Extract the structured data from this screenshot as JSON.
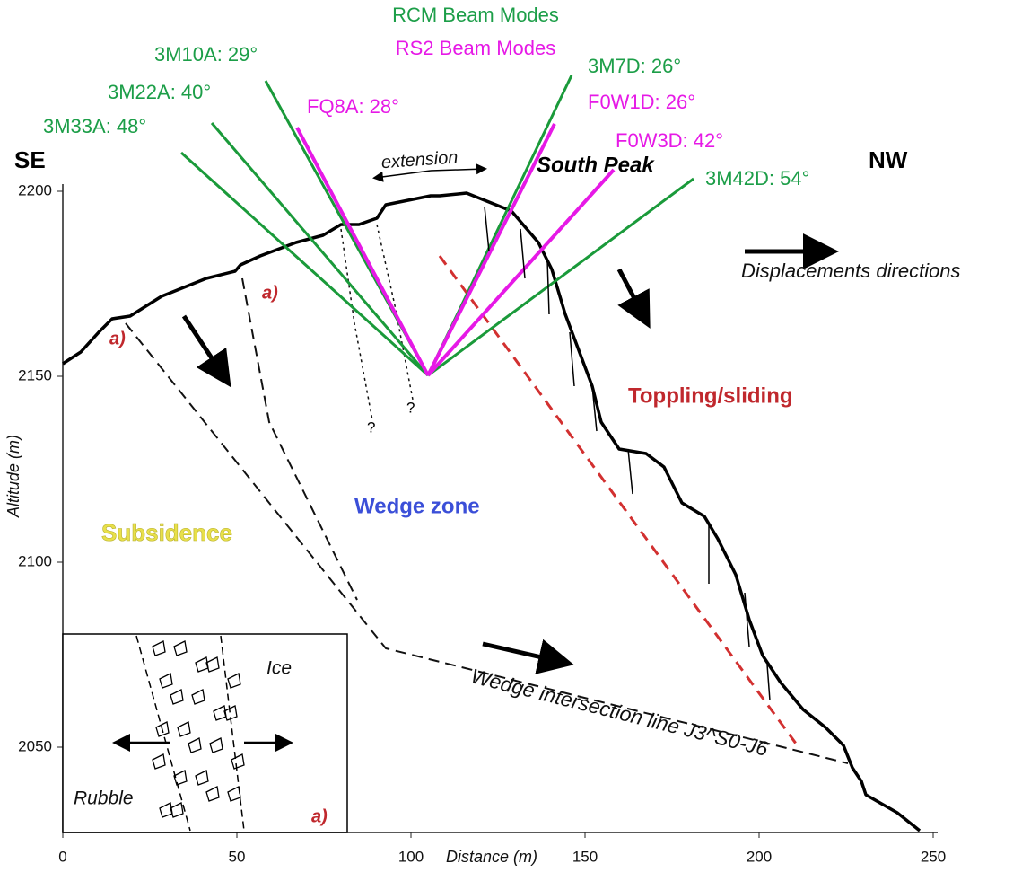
{
  "legend": {
    "rcm": "RCM Beam Modes",
    "rs2": "RS2 Beam Modes"
  },
  "rcm_modes": [
    "3M10A: 29°",
    "3M22A: 40°",
    "3M33A: 48°",
    "3M7D: 26°",
    "3M42D: 54°"
  ],
  "rs2_modes": [
    "FQ8A: 28°",
    "F0W1D: 26°",
    "F0W3D: 42°"
  ],
  "labels": {
    "se": "SE",
    "nw": "NW",
    "south_peak": "South Peak",
    "extension": "extension",
    "displacements": "Displacements directions",
    "toppling": "Toppling/sliding",
    "wedge_zone": "Wedge zone",
    "subsidence": "Subsidence",
    "wedge_line": "Wedge intersection line J3^S0-J6",
    "ice": "Ice",
    "rubble": "Rubble",
    "a_marks": [
      "a)",
      "a)",
      "a)"
    ],
    "questions": [
      "?",
      "?"
    ]
  },
  "axes": {
    "y_title": "Altitude (m)",
    "x_title": "Distance (m)",
    "y_ticks": [
      "2200",
      "2150",
      "2100",
      "2050"
    ],
    "x_ticks": [
      "0",
      "50",
      "100",
      "150",
      "200",
      "250"
    ]
  }
}
